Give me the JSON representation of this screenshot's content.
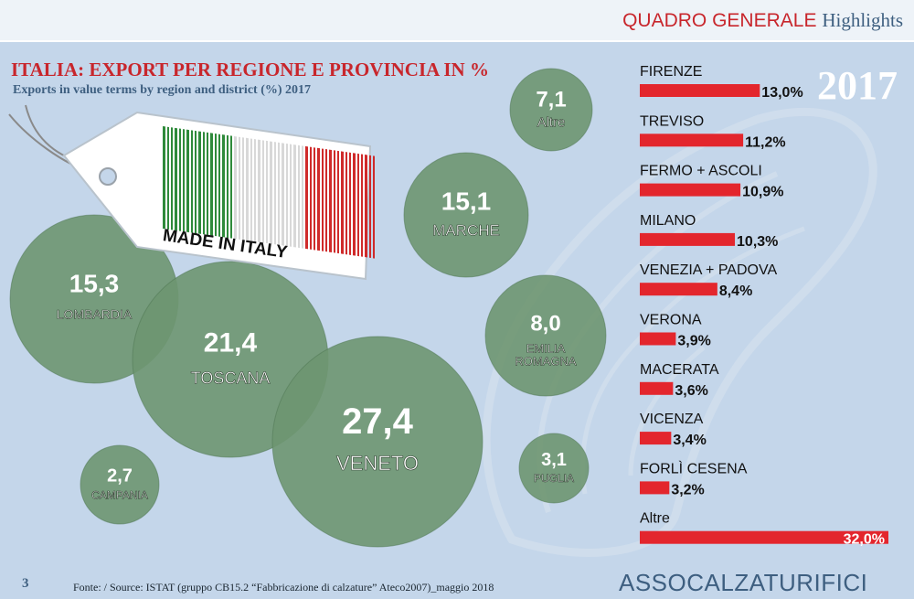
{
  "header": {
    "section_red": "QUADRO GENERALE",
    "section_blue": "Highlights"
  },
  "title": "ITALIA: EXPORT PER REGIONE E PROVINCIA IN %",
  "subtitle": "Exports in value terms by region and district (%) 2017",
  "year_badge": "2017",
  "tag_text": "MADE IN ITALY",
  "page_number": "3",
  "source": "Fonte: / Source: ISTAT (gruppo CB15.2 “Fabbricazione di calzature” Ateco2007)_maggio 2018",
  "brand": "ASSOCALZATURIFICI",
  "colors": {
    "bubble": "#6e9671",
    "bar": "#e3262d",
    "red_text": "#c8262c",
    "blue_text": "#3e5f80",
    "background": "#c4d6ea"
  },
  "chart_data": [
    {
      "type": "bubble",
      "series": [
        {
          "label": "LOMBARDIA",
          "value": "15,3",
          "v": 15.3
        },
        {
          "label": "TOSCANA",
          "value": "21,4",
          "v": 21.4
        },
        {
          "label": "VENETO",
          "value": "27,4",
          "v": 27.4
        },
        {
          "label": "CAMPANIA",
          "value": "2,7",
          "v": 2.7
        },
        {
          "label": "MARCHE",
          "value": "15,1",
          "v": 15.1
        },
        {
          "label": "Altre",
          "value": "7,1",
          "v": 7.1
        },
        {
          "label": "EMILIA ROMAGNA",
          "value": "8,0",
          "v": 8.0
        },
        {
          "label": "PUGLIA",
          "value": "3,1",
          "v": 3.1
        }
      ]
    },
    {
      "type": "bar",
      "orientation": "horizontal",
      "categories": [
        "FIRENZE",
        "TREVISO",
        "FERMO + ASCOLI",
        "MILANO",
        "VENEZIA + PADOVA",
        "VERONA",
        "MACERATA",
        "VICENZA",
        "FORLÌ CESENA",
        "Altre"
      ],
      "values": [
        13.0,
        11.2,
        10.9,
        10.3,
        8.4,
        3.9,
        3.6,
        3.4,
        3.2,
        32.0
      ],
      "value_labels": [
        "13,0%",
        "11,2%",
        "10,9%",
        "10,3%",
        "8,4%",
        "3,9%",
        "3,6%",
        "3,4%",
        "3,2%",
        "32,0%"
      ]
    }
  ]
}
